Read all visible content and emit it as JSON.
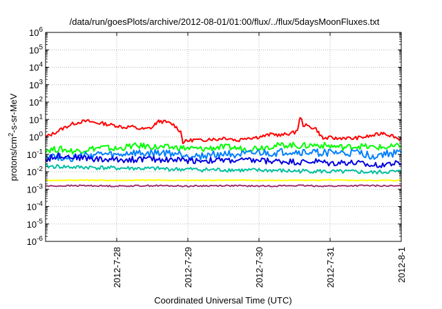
{
  "chart_data": {
    "type": "line",
    "title": "/data/run/goesPlots/archive/2012-08-01/01:00/flux/../flux/5daysMoonFluxes.txt",
    "xlabel": "Coordinated Universal Time (UTC)",
    "ylabel": "protons/cm2-s-sr-MeV",
    "y_scale": "log",
    "ylim": [
      1e-06,
      1000000.0
    ],
    "y_tick_labels": [
      {
        "base": "10",
        "exp": "-6"
      },
      {
        "base": "10",
        "exp": "-5"
      },
      {
        "base": "10",
        "exp": "-4"
      },
      {
        "base": "10",
        "exp": "-3"
      },
      {
        "base": "10",
        "exp": "-2"
      },
      {
        "base": "10",
        "exp": "-1"
      },
      {
        "base": "10",
        "exp": "0"
      },
      {
        "base": "10",
        "exp": "1"
      },
      {
        "base": "10",
        "exp": "2"
      },
      {
        "base": "10",
        "exp": "3"
      },
      {
        "base": "10",
        "exp": "4"
      },
      {
        "base": "10",
        "exp": "5"
      },
      {
        "base": "10",
        "exp": "6"
      }
    ],
    "x_unit": "day",
    "xlim": [
      "2012-07-27 01:00",
      "2012-08-01 01:00"
    ],
    "x_ticks": [
      {
        "label": "2012-7-28",
        "day": 1
      },
      {
        "label": "2012-7-29",
        "day": 2
      },
      {
        "label": "2012-7-30",
        "day": 3
      },
      {
        "label": "2012-7-31",
        "day": 4
      },
      {
        "label": "2012-8-1",
        "day": 5
      }
    ],
    "grid": true,
    "series_count": 7,
    "series": [
      {
        "color": "#ff0000",
        "points": [
          [
            0,
            1.0
          ],
          [
            0.1,
            1.5
          ],
          [
            0.2,
            2.5
          ],
          [
            0.3,
            4.0
          ],
          [
            0.4,
            6.0
          ],
          [
            0.5,
            7.5
          ],
          [
            0.6,
            8.0
          ],
          [
            0.7,
            6.5
          ],
          [
            0.8,
            6.0
          ],
          [
            0.9,
            5.0
          ],
          [
            1.0,
            4.5
          ],
          [
            1.1,
            3.5
          ],
          [
            1.2,
            4.0
          ],
          [
            1.3,
            3.0
          ],
          [
            1.4,
            2.8
          ],
          [
            1.5,
            3.5
          ],
          [
            1.55,
            6.0
          ],
          [
            1.6,
            8.0
          ],
          [
            1.7,
            7.0
          ],
          [
            1.8,
            5.0
          ],
          [
            1.9,
            2.0
          ],
          [
            1.93,
            0.5
          ],
          [
            2.0,
            0.6
          ],
          [
            2.1,
            0.7
          ],
          [
            2.2,
            0.6
          ],
          [
            2.3,
            0.8
          ],
          [
            2.4,
            0.7
          ],
          [
            2.5,
            0.9
          ],
          [
            2.6,
            0.8
          ],
          [
            2.7,
            0.6
          ],
          [
            2.8,
            0.9
          ],
          [
            2.9,
            0.9
          ],
          [
            3.0,
            1.0
          ],
          [
            3.1,
            1.2
          ],
          [
            3.2,
            1.5
          ],
          [
            3.3,
            1.2
          ],
          [
            3.4,
            1.5
          ],
          [
            3.5,
            1.8
          ],
          [
            3.55,
            3.0
          ],
          [
            3.58,
            15
          ],
          [
            3.62,
            5.0
          ],
          [
            3.7,
            4.0
          ],
          [
            3.8,
            3.0
          ],
          [
            3.85,
            1.5
          ],
          [
            3.9,
            0.8
          ],
          [
            4.0,
            0.9
          ],
          [
            4.1,
            0.8
          ],
          [
            4.2,
            0.9
          ],
          [
            4.3,
            0.8
          ],
          [
            4.4,
            0.9
          ],
          [
            4.5,
            1.0
          ],
          [
            4.6,
            1.2
          ],
          [
            4.7,
            1.5
          ],
          [
            4.75,
            1.8
          ],
          [
            4.8,
            1.4
          ],
          [
            4.9,
            1.1
          ],
          [
            4.95,
            0.8
          ],
          [
            5.0,
            0.8
          ]
        ]
      },
      {
        "color": "#00ff00",
        "points": [
          [
            0,
            0.18
          ],
          [
            0.2,
            0.2
          ],
          [
            0.4,
            0.15
          ],
          [
            0.6,
            0.2
          ],
          [
            0.8,
            0.25
          ],
          [
            1.0,
            0.2
          ],
          [
            1.2,
            0.3
          ],
          [
            1.4,
            0.3
          ],
          [
            1.6,
            0.25
          ],
          [
            1.8,
            0.25
          ],
          [
            2.0,
            0.22
          ],
          [
            2.2,
            0.2
          ],
          [
            2.4,
            0.25
          ],
          [
            2.6,
            0.25
          ],
          [
            2.8,
            0.2
          ],
          [
            3.0,
            0.25
          ],
          [
            3.2,
            0.3
          ],
          [
            3.4,
            0.35
          ],
          [
            3.6,
            0.3
          ],
          [
            3.8,
            0.35
          ],
          [
            4.0,
            0.3
          ],
          [
            4.2,
            0.25
          ],
          [
            4.4,
            0.3
          ],
          [
            4.6,
            0.25
          ],
          [
            4.8,
            0.25
          ],
          [
            5.0,
            0.3
          ]
        ]
      },
      {
        "color": "#0080ff",
        "points": [
          [
            0,
            0.09
          ],
          [
            0.2,
            0.07
          ],
          [
            0.4,
            0.06
          ],
          [
            0.6,
            0.09
          ],
          [
            0.8,
            0.1
          ],
          [
            1.0,
            0.08
          ],
          [
            1.2,
            0.12
          ],
          [
            1.4,
            0.1
          ],
          [
            1.6,
            0.12
          ],
          [
            1.8,
            0.11
          ],
          [
            2.0,
            0.09
          ],
          [
            2.2,
            0.08
          ],
          [
            2.4,
            0.1
          ],
          [
            2.6,
            0.11
          ],
          [
            2.8,
            0.09
          ],
          [
            3.0,
            0.12
          ],
          [
            3.2,
            0.11
          ],
          [
            3.4,
            0.14
          ],
          [
            3.6,
            0.13
          ],
          [
            3.8,
            0.12
          ],
          [
            4.0,
            0.13
          ],
          [
            4.2,
            0.11
          ],
          [
            4.4,
            0.12
          ],
          [
            4.6,
            0.08
          ],
          [
            4.8,
            0.11
          ],
          [
            5.0,
            0.12
          ]
        ]
      },
      {
        "color": "#0000e0",
        "points": [
          [
            0,
            0.05
          ],
          [
            0.2,
            0.09
          ],
          [
            0.4,
            0.07
          ],
          [
            0.6,
            0.06
          ],
          [
            0.8,
            0.05
          ],
          [
            1.0,
            0.05
          ],
          [
            1.2,
            0.05
          ],
          [
            1.4,
            0.055
          ],
          [
            1.6,
            0.05
          ],
          [
            1.8,
            0.05
          ],
          [
            2.0,
            0.045
          ],
          [
            2.2,
            0.045
          ],
          [
            2.4,
            0.045
          ],
          [
            2.6,
            0.045
          ],
          [
            2.8,
            0.045
          ],
          [
            3.0,
            0.045
          ],
          [
            3.2,
            0.04
          ],
          [
            3.4,
            0.04
          ],
          [
            3.6,
            0.035
          ],
          [
            3.8,
            0.04
          ],
          [
            4.0,
            0.03
          ],
          [
            4.2,
            0.035
          ],
          [
            4.4,
            0.03
          ],
          [
            4.6,
            0.022
          ],
          [
            4.8,
            0.03
          ],
          [
            5.0,
            0.028
          ]
        ]
      },
      {
        "color": "#00c0a0",
        "points": [
          [
            0,
            0.02
          ],
          [
            0.2,
            0.02
          ],
          [
            0.4,
            0.018
          ],
          [
            0.6,
            0.018
          ],
          [
            0.8,
            0.017
          ],
          [
            1.0,
            0.016
          ],
          [
            1.2,
            0.016
          ],
          [
            1.4,
            0.015
          ],
          [
            1.6,
            0.015
          ],
          [
            1.8,
            0.014
          ],
          [
            2.0,
            0.014
          ],
          [
            2.2,
            0.013
          ],
          [
            2.4,
            0.013
          ],
          [
            2.6,
            0.013
          ],
          [
            2.8,
            0.012
          ],
          [
            3.0,
            0.012
          ],
          [
            3.2,
            0.012
          ],
          [
            3.4,
            0.011
          ],
          [
            3.6,
            0.011
          ],
          [
            3.8,
            0.011
          ],
          [
            4.0,
            0.01
          ],
          [
            4.2,
            0.01
          ],
          [
            4.4,
            0.01
          ],
          [
            4.6,
            0.009
          ],
          [
            4.8,
            0.01
          ],
          [
            5.0,
            0.01
          ]
        ]
      },
      {
        "color": "#ffff00",
        "points": [
          [
            0,
            0.0032
          ],
          [
            0.5,
            0.0033
          ],
          [
            1.0,
            0.0032
          ],
          [
            1.5,
            0.0033
          ],
          [
            2.0,
            0.0032
          ],
          [
            2.5,
            0.0033
          ],
          [
            3.0,
            0.0032
          ],
          [
            3.5,
            0.0032
          ],
          [
            4.0,
            0.0033
          ],
          [
            4.5,
            0.0032
          ],
          [
            5.0,
            0.0032
          ]
        ]
      },
      {
        "color": "#a03070",
        "points": [
          [
            0,
            0.0015
          ],
          [
            0.5,
            0.0016
          ],
          [
            1.0,
            0.0015
          ],
          [
            1.5,
            0.0016
          ],
          [
            2.0,
            0.0015
          ],
          [
            2.5,
            0.0016
          ],
          [
            3.0,
            0.0015
          ],
          [
            3.5,
            0.0016
          ],
          [
            4.0,
            0.0015
          ],
          [
            4.5,
            0.0016
          ],
          [
            5.0,
            0.0015
          ]
        ]
      }
    ]
  }
}
